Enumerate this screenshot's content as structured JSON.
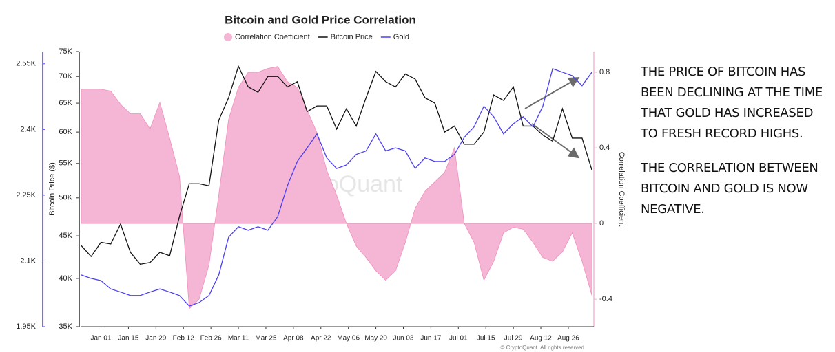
{
  "chart_data": {
    "type": "line",
    "title": "Bitcoin and Gold Price Correlation",
    "ylabel": "Bitcoin Price ($)",
    "y2label": "Correlation Coefficient",
    "watermark": "CryptoQuant",
    "footer": "© CryptoQuant. All rights reserved",
    "x": [
      "Dec 22",
      "Dec 27",
      "Jan 01",
      "Jan 06",
      "Jan 11",
      "Jan 16",
      "Jan 21",
      "Jan 26",
      "Jan 31",
      "Feb 05",
      "Feb 10",
      "Feb 15",
      "Feb 20",
      "Feb 25",
      "Mar 01",
      "Mar 06",
      "Mar 11",
      "Mar 16",
      "Mar 21",
      "Mar 26",
      "Mar 31",
      "Apr 05",
      "Apr 10",
      "Apr 15",
      "Apr 20",
      "Apr 25",
      "Apr 30",
      "May 05",
      "May 10",
      "May 15",
      "May 20",
      "May 25",
      "May 30",
      "Jun 04",
      "Jun 09",
      "Jun 14",
      "Jun 19",
      "Jun 24",
      "Jun 29",
      "Jul 04",
      "Jul 09",
      "Jul 14",
      "Jul 19",
      "Jul 24",
      "Jul 29",
      "Aug 03",
      "Aug 08",
      "Aug 13",
      "Aug 18",
      "Aug 23",
      "Aug 28",
      "Sep 02",
      "Sep 07"
    ],
    "xlim": [
      "Dec 22",
      "Sep 08"
    ],
    "xticks": [
      "Jan 01",
      "Jan 15",
      "Jan 29",
      "Feb 12",
      "Feb 26",
      "Mar 11",
      "Mar 25",
      "Apr 08",
      "Apr 22",
      "May 06",
      "May 20",
      "Jun 03",
      "Jun 17",
      "Jul 01",
      "Jul 15",
      "Jul 29",
      "Aug 12",
      "Aug 26"
    ],
    "ylim": [
      35000,
      75000
    ],
    "ylog": true,
    "yticks": [
      {
        "value": 35000,
        "label": "35K"
      },
      {
        "value": 40000,
        "label": "40K"
      },
      {
        "value": 45000,
        "label": "45K"
      },
      {
        "value": 50000,
        "label": "50K"
      },
      {
        "value": 55000,
        "label": "55K"
      },
      {
        "value": 60000,
        "label": "60K"
      },
      {
        "value": 65000,
        "label": "65K"
      },
      {
        "value": 70000,
        "label": "70K"
      },
      {
        "value": 75000,
        "label": "75K"
      }
    ],
    "y2lim": [
      -0.545,
      0.909
    ],
    "y2ticks": [
      -0.4,
      0,
      0.4,
      0.8
    ],
    "y3lim": [
      1950,
      2578
    ],
    "y3ticks": [
      {
        "value": 1950,
        "label": "1.95K"
      },
      {
        "value": 2100,
        "label": "2.1K"
      },
      {
        "value": 2250,
        "label": "2.25K"
      },
      {
        "value": 2400,
        "label": "2.4K"
      },
      {
        "value": 2550,
        "label": "2.55K"
      }
    ],
    "series": [
      {
        "name": "Correlation Coefficient",
        "type": "area",
        "axis": "y2",
        "color": "#f5b5d5",
        "values": [
          0.71,
          0.71,
          0.71,
          0.7,
          0.63,
          0.58,
          0.58,
          0.5,
          0.64,
          0.45,
          0.25,
          -0.45,
          -0.4,
          -0.22,
          0.15,
          0.55,
          0.72,
          0.8,
          0.8,
          0.82,
          0.83,
          0.75,
          0.72,
          0.6,
          0.48,
          0.28,
          0.15,
          0.0,
          -0.12,
          -0.18,
          -0.25,
          -0.3,
          -0.25,
          -0.1,
          0.08,
          0.17,
          0.22,
          0.27,
          0.4,
          0.0,
          -0.1,
          -0.3,
          -0.2,
          -0.05,
          -0.02,
          -0.03,
          -0.1,
          -0.18,
          -0.2,
          -0.15,
          -0.05,
          -0.2,
          -0.38
        ]
      },
      {
        "name": "Bitcoin Price",
        "type": "line",
        "axis": "y",
        "color": "#111111",
        "values": [
          43800,
          42500,
          44200,
          44000,
          46500,
          43000,
          41600,
          41800,
          43000,
          42600,
          47500,
          52000,
          52000,
          51700,
          62000,
          66000,
          72000,
          68000,
          67000,
          70000,
          70000,
          68000,
          69000,
          63500,
          64500,
          64500,
          60500,
          64000,
          61000,
          66000,
          71000,
          69000,
          68000,
          70500,
          69500,
          66000,
          65000,
          60000,
          61000,
          58000,
          58000,
          60000,
          66500,
          65500,
          68000,
          61000,
          61000,
          59500,
          58500,
          64000,
          59000,
          59000,
          54000
        ]
      },
      {
        "name": "Gold",
        "type": "line",
        "axis": "y3",
        "color": "#4b3ff0",
        "values": [
          2068,
          2060,
          2055,
          2036,
          2029,
          2021,
          2021,
          2029,
          2036,
          2029,
          2021,
          1997,
          2005,
          2021,
          2068,
          2154,
          2178,
          2170,
          2178,
          2170,
          2201,
          2272,
          2327,
          2358,
          2390,
          2335,
          2311,
          2319,
          2343,
          2351,
          2390,
          2351,
          2358,
          2351,
          2311,
          2335,
          2327,
          2327,
          2343,
          2382,
          2406,
          2453,
          2429,
          2390,
          2413,
          2429,
          2406,
          2453,
          2539,
          2531,
          2523,
          2500,
          2531
        ]
      }
    ]
  },
  "annotation": [
    "THE PRICE OF BITCOIN HAS BEEN DECLINING AT THE TIME THAT GOLD HAS INCREASED TO FRESH RECORD HIGHS.",
    "THE CORRELATION BETWEEN BITCOIN AND GOLD IS NOW NEGATIVE."
  ]
}
